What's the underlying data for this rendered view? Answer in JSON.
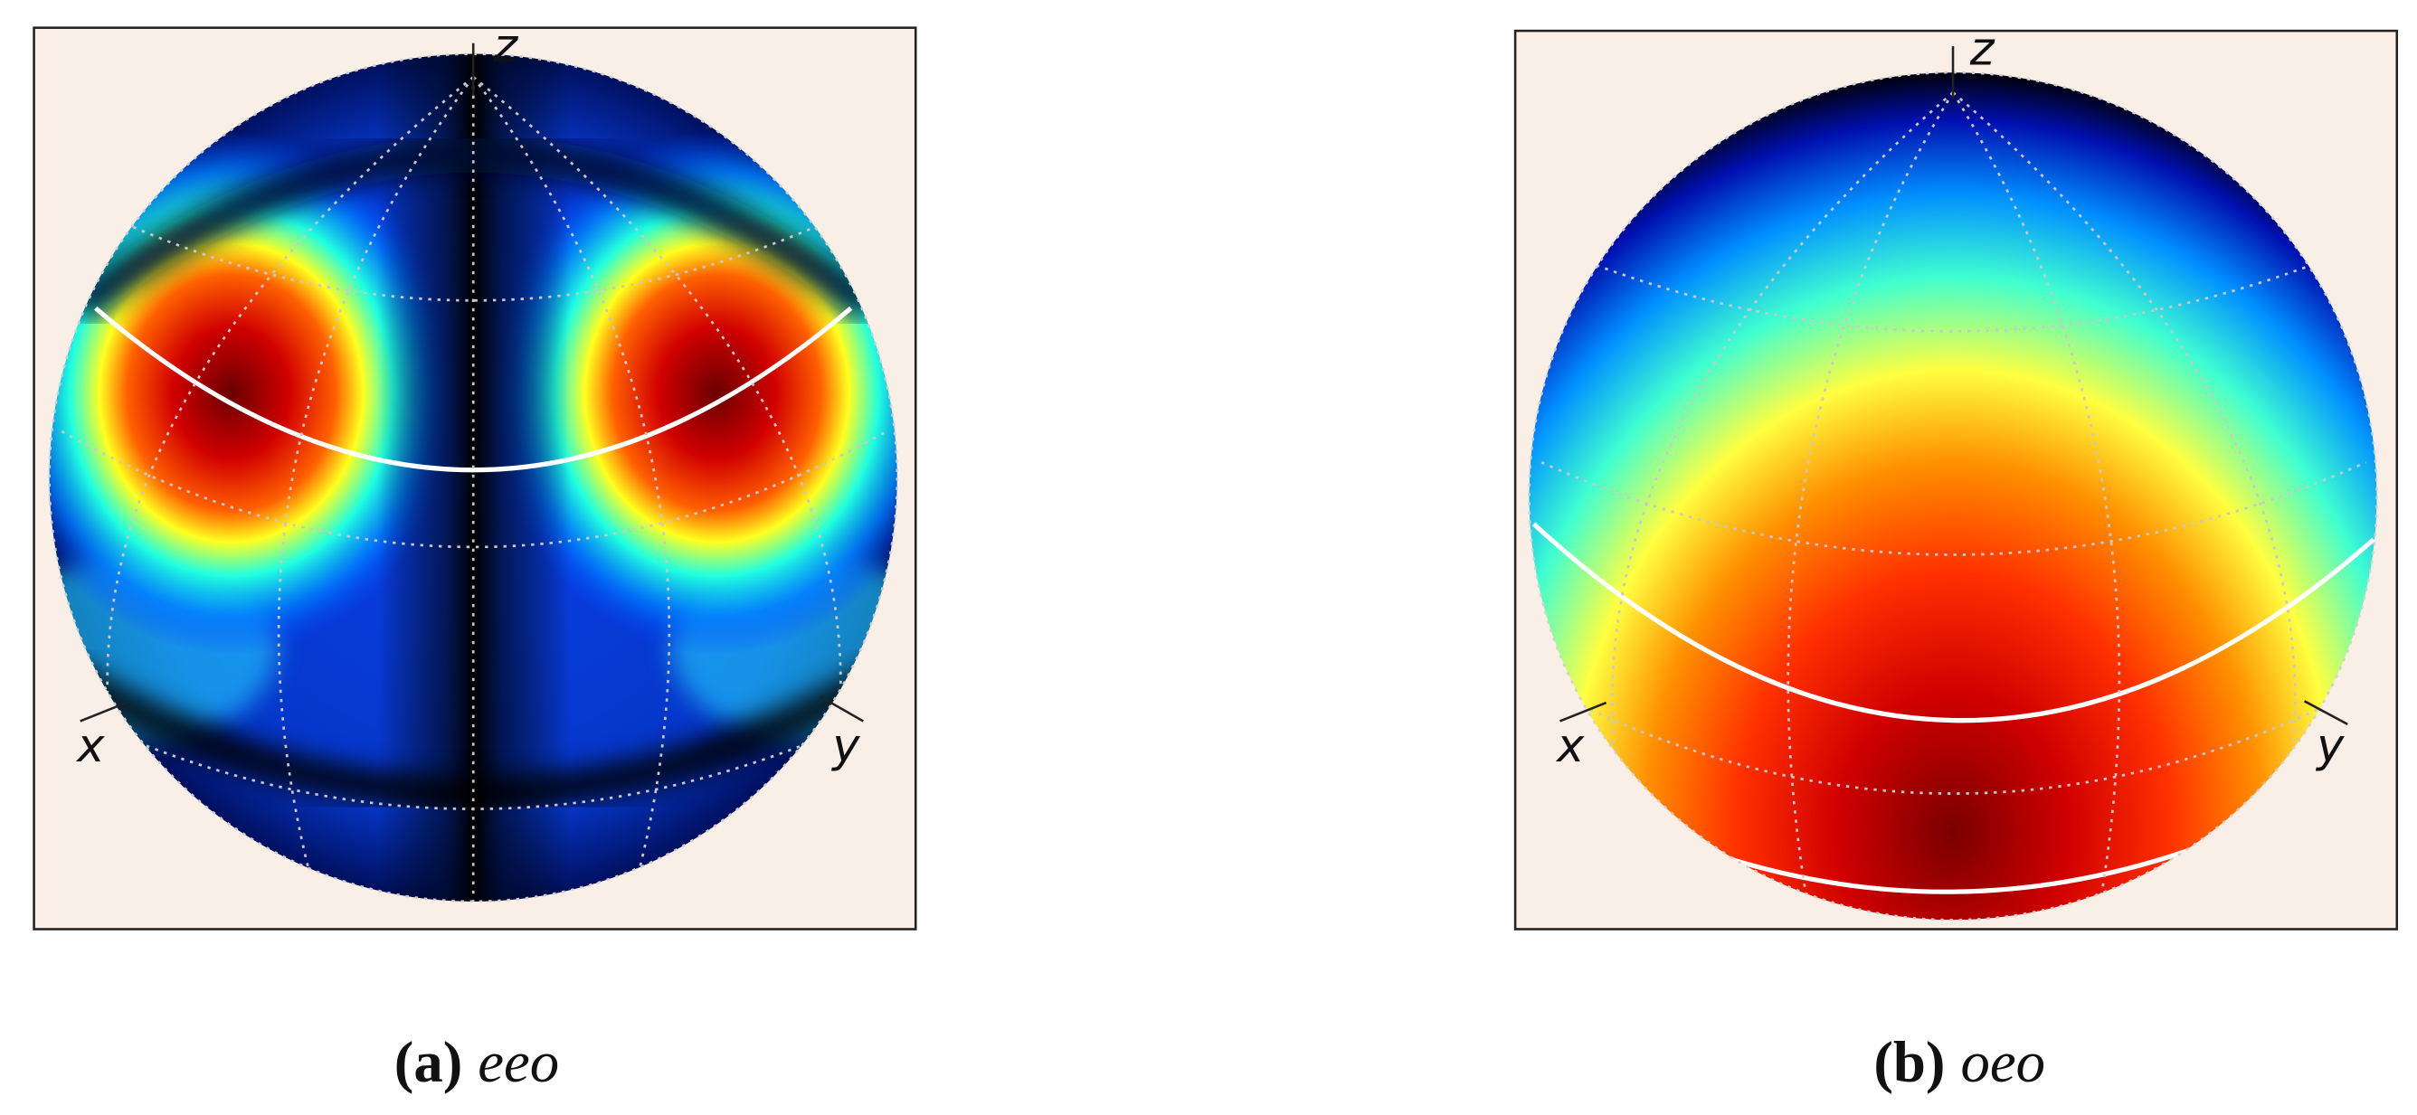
{
  "panels": [
    {
      "label": "(a)",
      "caption": "eeo",
      "axis_labels": [
        "z",
        "x",
        "y"
      ]
    },
    {
      "label": "(b)",
      "caption": "oeo",
      "axis_labels": [
        "z",
        "x",
        "y"
      ]
    }
  ]
}
